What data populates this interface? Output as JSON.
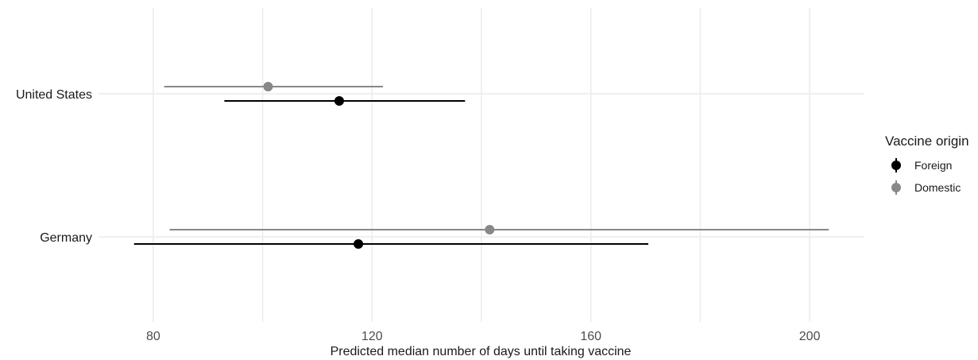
{
  "chart_data": {
    "type": "scatter",
    "subtype": "point-range",
    "title": "",
    "xlabel": "Predicted median number of days until taking vaccine",
    "ylabel": "",
    "xlim": [
      70,
      210
    ],
    "x_ticks": [
      80,
      120,
      160,
      200
    ],
    "x_minor_gridlines": [
      100,
      140,
      180
    ],
    "grid": true,
    "categories": [
      "United States",
      "Germany"
    ],
    "legend": {
      "title": "Vaccine origin",
      "position": "right"
    },
    "series": [
      {
        "name": "Foreign",
        "color": "#000000",
        "points": [
          {
            "category": "United States",
            "estimate": 114,
            "low": 93,
            "high": 137
          },
          {
            "category": "Germany",
            "estimate": 117.5,
            "low": 76.5,
            "high": 170.5
          }
        ]
      },
      {
        "name": "Domestic",
        "color": "#888888",
        "points": [
          {
            "category": "United States",
            "estimate": 101,
            "low": 82,
            "high": 122
          },
          {
            "category": "Germany",
            "estimate": 141.5,
            "low": 83,
            "high": 203.5
          }
        ]
      }
    ]
  }
}
